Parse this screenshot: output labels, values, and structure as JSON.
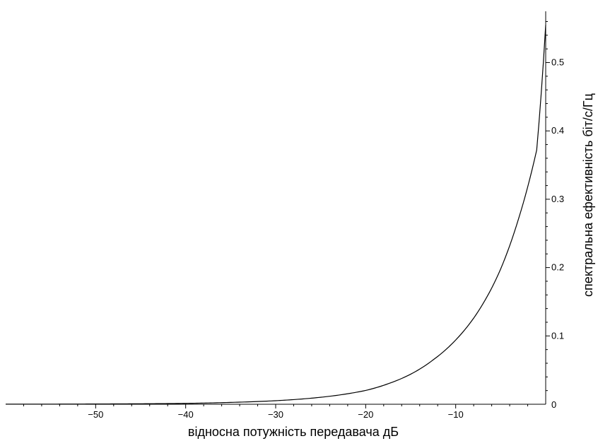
{
  "chart_data": {
    "type": "line",
    "title": "",
    "xlabel": "відносна потужність передавача дБ",
    "ylabel": "спектральна ефективність біт/с/Гц",
    "xlim": [
      -60,
      0
    ],
    "ylim": [
      0,
      0.575
    ],
    "x_tick_labels": [
      {
        "value": -50,
        "label": "−50"
      },
      {
        "value": -40,
        "label": "−40"
      },
      {
        "value": -30,
        "label": "−30"
      },
      {
        "value": -20,
        "label": "−20"
      },
      {
        "value": -10,
        "label": "−10"
      }
    ],
    "y_tick_labels": [
      {
        "value": 0,
        "label": "0"
      },
      {
        "value": 0.1,
        "label": "0.1"
      },
      {
        "value": 0.2,
        "label": "0.2"
      },
      {
        "value": 0.3,
        "label": "0.3"
      },
      {
        "value": 0.4,
        "label": "0.4"
      },
      {
        "value": 0.5,
        "label": "0.5"
      }
    ],
    "grid": false,
    "series": [
      {
        "x": [
          -60,
          -50,
          -45,
          -40,
          -35,
          -30,
          -25,
          -20,
          -17.5,
          -15,
          -12.5,
          -10,
          -8,
          -6,
          -5,
          -4,
          -3,
          -2,
          -1,
          0
        ],
        "values": [
          0.0001,
          0.0004,
          0.0007,
          0.0013,
          0.0027,
          0.0052,
          0.0102,
          0.0202,
          0.03,
          0.044,
          0.065,
          0.094,
          0.126,
          0.17,
          0.198,
          0.232,
          0.272,
          0.318,
          0.372,
          0.555
        ]
      }
    ]
  }
}
